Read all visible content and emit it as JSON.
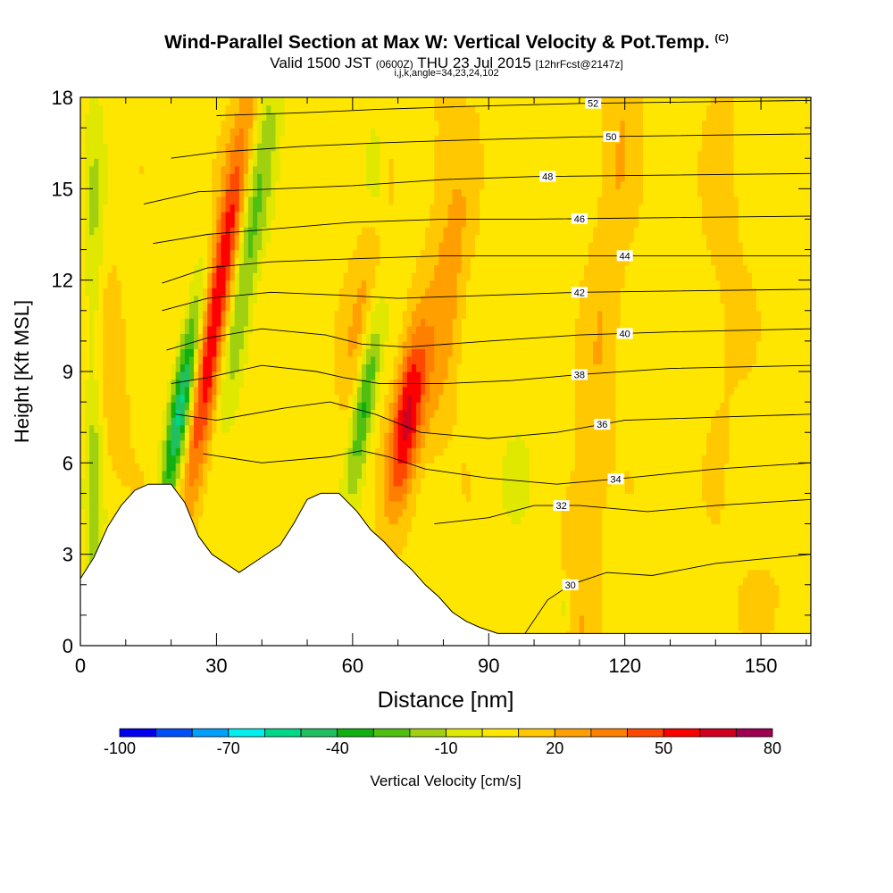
{
  "header": {
    "title": "Wind-Parallel Section at Max W: Vertical Velocity & Pot.Temp.",
    "title_suffix": "(C)",
    "valid_prefix": "Valid 1500 JST",
    "valid_utc": "(0600Z)",
    "valid_date": "THU 23 Jul 2015",
    "forecast": "[12hrFcst@2147z]",
    "params": "i,j,k,angle=34,23,24,102"
  },
  "chart_data": {
    "type": "heatmap",
    "xlabel": "Distance [nm]",
    "ylabel": "Height [Kft MSL]",
    "xlim": [
      0,
      161
    ],
    "ylim": [
      0,
      18
    ],
    "x_ticks": [
      0,
      30,
      60,
      90,
      120,
      150
    ],
    "y_ticks": [
      0,
      3,
      6,
      9,
      12,
      15,
      18
    ],
    "colorbar": {
      "label": "Vertical Velocity [cm/s]",
      "tick_labels": [
        "-100",
        "-70",
        "-40",
        "-10",
        "20",
        "50",
        "80"
      ],
      "tick_values": [
        -100,
        -70,
        -40,
        -10,
        20,
        50,
        80
      ],
      "bins": [
        -100,
        -90,
        -80,
        -70,
        -60,
        -50,
        -40,
        -30,
        -20,
        -10,
        0,
        10,
        20,
        30,
        40,
        50,
        60,
        70,
        80
      ],
      "colors": [
        "#0000f0",
        "#0050f8",
        "#00a0ff",
        "#00f0f0",
        "#00d888",
        "#20c060",
        "#10b010",
        "#50c010",
        "#a0d010",
        "#e0e800",
        "#ffe600",
        "#ffc800",
        "#ffa000",
        "#ff8000",
        "#ff4800",
        "#ff0000",
        "#d00020",
        "#a00050",
        "#6a0090"
      ]
    },
    "terrain_kft": [
      [
        0,
        2.2
      ],
      [
        3,
        2.9
      ],
      [
        6,
        3.9
      ],
      [
        9,
        4.6
      ],
      [
        12,
        5.1
      ],
      [
        15,
        5.3
      ],
      [
        20,
        5.3
      ],
      [
        23,
        4.7
      ],
      [
        26,
        3.6
      ],
      [
        29,
        3.0
      ],
      [
        32,
        2.7
      ],
      [
        35,
        2.4
      ],
      [
        39,
        2.8
      ],
      [
        44,
        3.3
      ],
      [
        47,
        4.0
      ],
      [
        50,
        4.8
      ],
      [
        53,
        5.0
      ],
      [
        57,
        5.0
      ],
      [
        61,
        4.4
      ],
      [
        64,
        3.8
      ],
      [
        67,
        3.4
      ],
      [
        70,
        2.9
      ],
      [
        73,
        2.5
      ],
      [
        76,
        2.0
      ],
      [
        79,
        1.6
      ],
      [
        82,
        1.1
      ],
      [
        85,
        0.8
      ],
      [
        88,
        0.6
      ],
      [
        92,
        0.4
      ],
      [
        161,
        0.4
      ]
    ],
    "theta_contours": [
      {
        "value": 30,
        "label_x": 108,
        "points": [
          [
            98,
            0.4
          ],
          [
            103,
            1.5
          ],
          [
            108,
            2.0
          ],
          [
            116,
            2.4
          ],
          [
            126,
            2.3
          ],
          [
            140,
            2.7
          ],
          [
            161,
            3.0
          ]
        ]
      },
      {
        "value": 32,
        "label_x": 106,
        "points": [
          [
            78,
            4.0
          ],
          [
            90,
            4.2
          ],
          [
            100,
            4.6
          ],
          [
            110,
            4.6
          ],
          [
            125,
            4.4
          ],
          [
            140,
            4.6
          ],
          [
            161,
            4.8
          ]
        ]
      },
      {
        "value": 34,
        "label_x": 118,
        "points": [
          [
            27,
            6.3
          ],
          [
            40,
            6.0
          ],
          [
            55,
            6.2
          ],
          [
            62,
            6.4
          ],
          [
            68,
            6.2
          ],
          [
            76,
            5.8
          ],
          [
            90,
            5.5
          ],
          [
            105,
            5.3
          ],
          [
            120,
            5.5
          ],
          [
            140,
            5.8
          ],
          [
            161,
            6.0
          ]
        ]
      },
      {
        "value": 36,
        "label_x": 115,
        "points": [
          [
            21,
            7.6
          ],
          [
            30,
            7.4
          ],
          [
            45,
            7.8
          ],
          [
            55,
            8.0
          ],
          [
            65,
            7.6
          ],
          [
            75,
            7.0
          ],
          [
            90,
            6.8
          ],
          [
            105,
            7.0
          ],
          [
            120,
            7.4
          ],
          [
            140,
            7.5
          ],
          [
            161,
            7.6
          ]
        ]
      },
      {
        "value": 38,
        "label_x": 110,
        "points": [
          [
            20,
            8.6
          ],
          [
            28,
            8.8
          ],
          [
            40,
            9.2
          ],
          [
            52,
            9.0
          ],
          [
            58,
            8.8
          ],
          [
            66,
            8.6
          ],
          [
            80,
            8.6
          ],
          [
            95,
            8.7
          ],
          [
            110,
            8.9
          ],
          [
            130,
            9.1
          ],
          [
            161,
            9.2
          ]
        ]
      },
      {
        "value": 40,
        "label_x": 120,
        "points": [
          [
            19,
            9.7
          ],
          [
            28,
            10.1
          ],
          [
            40,
            10.4
          ],
          [
            54,
            10.2
          ],
          [
            62,
            9.9
          ],
          [
            72,
            9.8
          ],
          [
            90,
            10.0
          ],
          [
            110,
            10.2
          ],
          [
            130,
            10.3
          ],
          [
            161,
            10.4
          ]
        ]
      },
      {
        "value": 42,
        "label_x": 110,
        "points": [
          [
            18,
            11.0
          ],
          [
            28,
            11.4
          ],
          [
            42,
            11.6
          ],
          [
            58,
            11.5
          ],
          [
            70,
            11.4
          ],
          [
            90,
            11.5
          ],
          [
            110,
            11.6
          ],
          [
            161,
            11.7
          ]
        ]
      },
      {
        "value": 44,
        "label_x": 120,
        "points": [
          [
            18,
            11.9
          ],
          [
            28,
            12.4
          ],
          [
            42,
            12.6
          ],
          [
            60,
            12.7
          ],
          [
            80,
            12.8
          ],
          [
            100,
            12.8
          ],
          [
            161,
            12.8
          ]
        ]
      },
      {
        "value": 46,
        "label_x": 110,
        "points": [
          [
            16,
            13.2
          ],
          [
            28,
            13.5
          ],
          [
            44,
            13.7
          ],
          [
            60,
            13.9
          ],
          [
            80,
            14.0
          ],
          [
            100,
            14.0
          ],
          [
            161,
            14.1
          ]
        ]
      },
      {
        "value": 48,
        "label_x": 103,
        "points": [
          [
            14,
            14.5
          ],
          [
            26,
            14.9
          ],
          [
            44,
            15.0
          ],
          [
            60,
            15.1
          ],
          [
            80,
            15.3
          ],
          [
            100,
            15.4
          ],
          [
            161,
            15.5
          ]
        ]
      },
      {
        "value": 50,
        "label_x": 117,
        "points": [
          [
            20,
            16.0
          ],
          [
            30,
            16.2
          ],
          [
            50,
            16.4
          ],
          [
            65,
            16.5
          ],
          [
            85,
            16.6
          ],
          [
            110,
            16.7
          ],
          [
            161,
            16.8
          ]
        ]
      },
      {
        "value": 52,
        "label_x": 113,
        "points": [
          [
            30,
            17.4
          ],
          [
            50,
            17.5
          ],
          [
            65,
            17.6
          ],
          [
            85,
            17.7
          ],
          [
            110,
            17.8
          ],
          [
            161,
            17.9
          ]
        ]
      }
    ]
  }
}
